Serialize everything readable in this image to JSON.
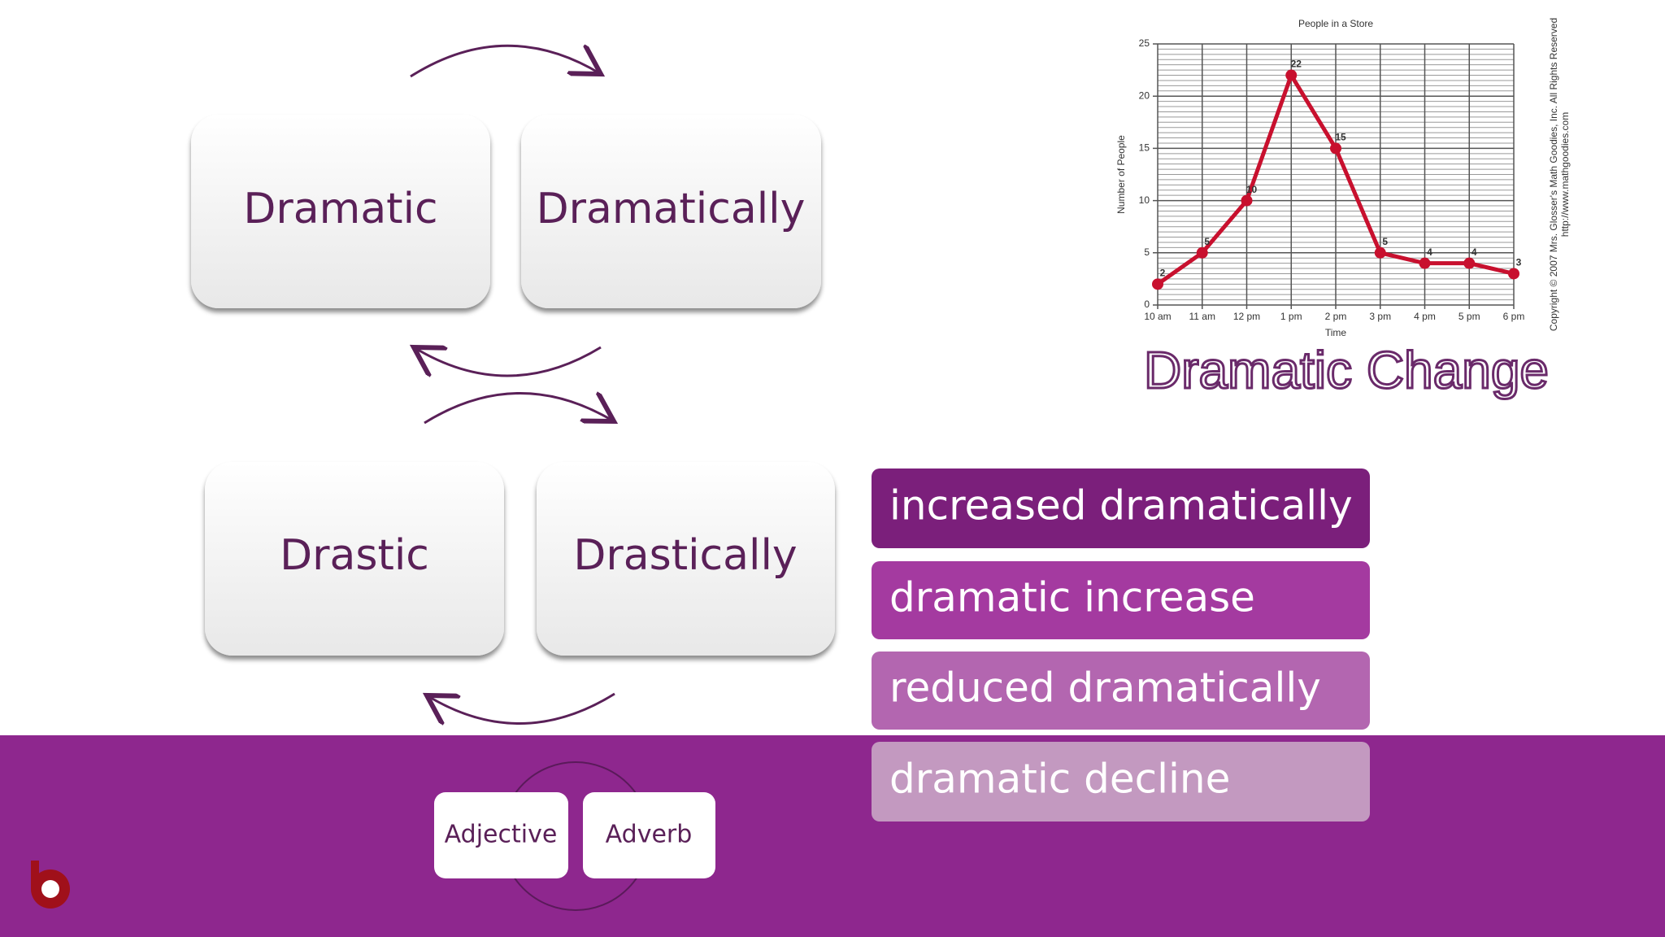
{
  "boxes": [
    "Dramatic",
    "Dramatically",
    "Drastic",
    "Drastically"
  ],
  "legend": [
    "Adjective",
    "Adverb"
  ],
  "phrases": [
    "increased dramatically",
    "dramatic increase",
    "reduced dramatically",
    "dramatic decline"
  ],
  "caption": "Dramatic Change",
  "chart_data": {
    "type": "line",
    "title": "People in a Store",
    "x_label": "Time",
    "y_label": "Number of People",
    "categories": [
      "10 am",
      "11 am",
      "12 pm",
      "1 pm",
      "2 pm",
      "3 pm",
      "4 pm",
      "5 pm",
      "6 pm"
    ],
    "values": [
      2,
      5,
      10,
      22,
      15,
      5,
      4,
      4,
      3
    ],
    "color": "#c8102e",
    "ylim": [
      0,
      25
    ],
    "yticks": [
      0,
      5,
      10,
      15,
      20,
      25
    ],
    "grid": true,
    "notes": [
      "Copyright © 2007 Mrs. Glosser's Math Goodies, Inc. All Rights Reserved",
      "http://www.mathgoodies.com"
    ]
  }
}
